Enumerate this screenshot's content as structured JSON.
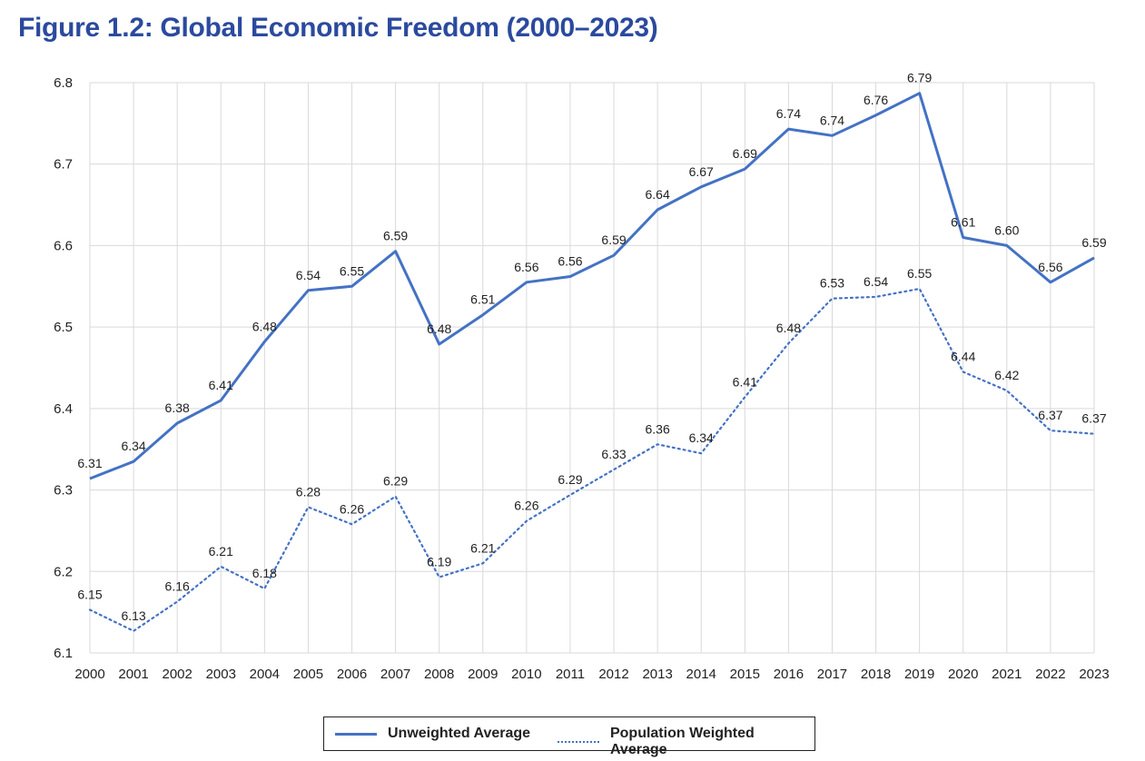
{
  "title": "Figure 1.2: Global Economic Freedom (2000–2023)",
  "chart_data": {
    "type": "line",
    "x": [
      "2000",
      "2001",
      "2002",
      "2003",
      "2004",
      "2005",
      "2006",
      "2007",
      "2008",
      "2009",
      "2010",
      "2011",
      "2012",
      "2013",
      "2014",
      "2015",
      "2016",
      "2017",
      "2018",
      "2019",
      "2020",
      "2021",
      "2022",
      "2023"
    ],
    "ylim": [
      6.1,
      6.8
    ],
    "yticks": [
      "6.1",
      "6.2",
      "6.3",
      "6.4",
      "6.5",
      "6.6",
      "6.7",
      "6.8"
    ],
    "grid": true,
    "legend_position": "bottom",
    "series": [
      {
        "name": "Unweighted Average",
        "style": "solid",
        "color": "#4472C4",
        "values": [
          6.314,
          6.335,
          6.382,
          6.41,
          6.482,
          6.545,
          6.55,
          6.593,
          6.479,
          6.515,
          6.555,
          6.562,
          6.588,
          6.644,
          6.672,
          6.694,
          6.743,
          6.735,
          6.76,
          6.787,
          6.61,
          6.6,
          6.555,
          6.585
        ],
        "labels": [
          "6.31",
          "6.34",
          "6.38",
          "6.41",
          "6.48",
          "6.54",
          "6.55",
          "6.59",
          "6.48",
          "6.51",
          "6.56",
          "6.56",
          "6.59",
          "6.64",
          "6.67",
          "6.69",
          "6.74",
          "6.74",
          "6.76",
          "6.79",
          "6.61",
          "6.60",
          "6.56",
          "6.59"
        ]
      },
      {
        "name": "Population Weighted Average",
        "style": "dotted",
        "color": "#4472C4",
        "values": [
          6.153,
          6.127,
          6.163,
          6.206,
          6.179,
          6.279,
          6.258,
          6.292,
          6.193,
          6.21,
          6.262,
          6.294,
          6.325,
          6.356,
          6.345,
          6.414,
          6.48,
          6.535,
          6.537,
          6.547,
          6.445,
          6.422,
          6.373,
          6.369
        ],
        "labels": [
          "6.15",
          "6.13",
          "6.16",
          "6.21",
          "6.18",
          "6.28",
          "6.26",
          "6.29",
          "6.19",
          "6.21",
          "6.26",
          "6.29",
          "6.33",
          "6.36",
          "6.34",
          "6.41",
          "6.48",
          "6.53",
          "6.54",
          "6.55",
          "6.44",
          "6.42",
          "6.37",
          "6.37"
        ]
      }
    ]
  }
}
